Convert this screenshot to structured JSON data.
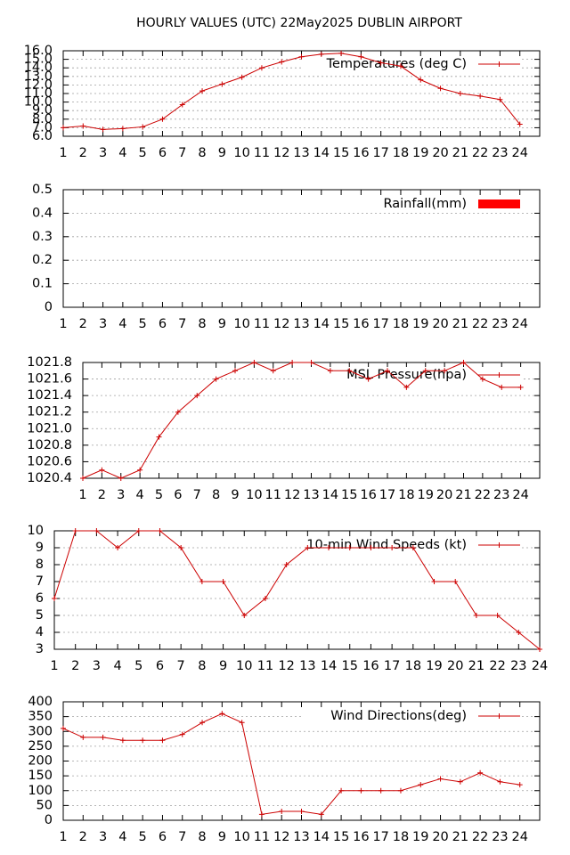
{
  "page": {
    "title": "HOURLY VALUES (UTC) 22May2025  DUBLIN AIRPORT"
  },
  "colors": {
    "series": "#cc0000",
    "rain": "#ff0000"
  },
  "chart_data": [
    {
      "type": "line",
      "legend": "Temperatures (deg C)",
      "legend_placement": "top-right",
      "x": [
        1,
        2,
        3,
        4,
        5,
        6,
        7,
        8,
        9,
        10,
        11,
        12,
        13,
        14,
        15,
        16,
        17,
        18,
        19,
        20,
        21,
        22,
        23,
        24
      ],
      "values": [
        7.0,
        7.2,
        6.8,
        6.9,
        7.1,
        8.0,
        9.7,
        11.3,
        12.1,
        12.9,
        14.0,
        14.7,
        15.3,
        15.6,
        15.7,
        15.3,
        14.6,
        14.2,
        12.6,
        11.6,
        11.0,
        10.7,
        10.3,
        7.4
      ],
      "xlim": [
        1,
        25
      ],
      "ylim": [
        6,
        16
      ],
      "yticks": [
        "6.0",
        "7.0",
        "8.0",
        "9.0",
        "10.0",
        "11.0",
        "12.0",
        "13.0",
        "14.0",
        "15.0",
        "16.0"
      ],
      "xticks": [
        "1",
        "2",
        "3",
        "4",
        "5",
        "6",
        "7",
        "8",
        "9",
        "10",
        "11",
        "12",
        "13",
        "14",
        "15",
        "16",
        "17",
        "18",
        "19",
        "20",
        "21",
        "22",
        "23",
        "24"
      ],
      "grid": true
    },
    {
      "type": "bar",
      "legend": "Rainfall(mm)",
      "legend_placement": "top-right",
      "x": [
        1,
        2,
        3,
        4,
        5,
        6,
        7,
        8,
        9,
        10,
        11,
        12,
        13,
        14,
        15,
        16,
        17,
        18,
        19,
        20,
        21,
        22,
        23,
        24
      ],
      "values": [
        0,
        0,
        0,
        0,
        0,
        0,
        0,
        0,
        0,
        0,
        0,
        0,
        0,
        0,
        0,
        0,
        0,
        0,
        0,
        0,
        0,
        0,
        0,
        0
      ],
      "xlim": [
        1,
        25
      ],
      "ylim": [
        0,
        0.5
      ],
      "yticks": [
        "0",
        "0.1",
        "0.2",
        "0.3",
        "0.4",
        "0.5"
      ],
      "xticks": [
        "1",
        "2",
        "3",
        "4",
        "5",
        "6",
        "7",
        "8",
        "9",
        "10",
        "11",
        "12",
        "13",
        "14",
        "15",
        "16",
        "17",
        "18",
        "19",
        "20",
        "21",
        "22",
        "23",
        "24"
      ],
      "grid": true
    },
    {
      "type": "line",
      "legend": "MSL Pressure(hpa)",
      "legend_placement": "top-right",
      "x": [
        1,
        2,
        3,
        4,
        5,
        6,
        7,
        8,
        9,
        10,
        11,
        12,
        13,
        14,
        15,
        16,
        17,
        18,
        19,
        20,
        21,
        22,
        23,
        24
      ],
      "values": [
        1020.4,
        1020.5,
        1020.4,
        1020.5,
        1020.9,
        1021.2,
        1021.4,
        1021.6,
        1021.7,
        1021.8,
        1021.7,
        1021.8,
        1021.8,
        1021.7,
        1021.7,
        1021.6,
        1021.7,
        1021.5,
        1021.7,
        1021.7,
        1021.8,
        1021.6,
        1021.5,
        1021.5
      ],
      "xlim": [
        1,
        25
      ],
      "ylim": [
        1020.4,
        1021.8
      ],
      "yticks": [
        "1020.4",
        "1020.6",
        "1020.8",
        "1021.0",
        "1021.2",
        "1021.4",
        "1021.6",
        "1021.8"
      ],
      "xticks": [
        "1",
        "2",
        "3",
        "4",
        "5",
        "6",
        "7",
        "8",
        "9",
        "10",
        "11",
        "12",
        "13",
        "14",
        "15",
        "16",
        "17",
        "18",
        "19",
        "20",
        "21",
        "22",
        "23",
        "24"
      ],
      "grid": true
    },
    {
      "type": "line",
      "legend": "10-min Wind Speeds (kt)",
      "legend_placement": "top-right",
      "x": [
        1,
        2,
        3,
        4,
        5,
        6,
        7,
        8,
        9,
        10,
        11,
        12,
        13,
        14,
        15,
        16,
        17,
        18,
        19,
        20,
        21,
        22,
        23,
        24
      ],
      "values": [
        6,
        10,
        10,
        9,
        10,
        10,
        9,
        7,
        7,
        5,
        6,
        8,
        9,
        9,
        9,
        9,
        9,
        9,
        7,
        7,
        5,
        5,
        4,
        3
      ],
      "xlim": [
        1,
        24
      ],
      "ylim": [
        3,
        10
      ],
      "yticks": [
        "3",
        "4",
        "5",
        "6",
        "7",
        "8",
        "9",
        "10"
      ],
      "xticks": [
        "1",
        "2",
        "3",
        "4",
        "5",
        "6",
        "7",
        "8",
        "9",
        "10",
        "11",
        "12",
        "13",
        "14",
        "15",
        "16",
        "17",
        "18",
        "19",
        "20",
        "21",
        "22",
        "23",
        "24"
      ],
      "grid": true
    },
    {
      "type": "line",
      "legend": "Wind Directions(deg)",
      "legend_placement": "top-right",
      "x": [
        1,
        2,
        3,
        4,
        5,
        6,
        7,
        8,
        9,
        10,
        11,
        12,
        13,
        14,
        15,
        16,
        17,
        18,
        19,
        20,
        21,
        22,
        23,
        24
      ],
      "values": [
        310,
        280,
        280,
        270,
        270,
        270,
        290,
        330,
        360,
        330,
        20,
        30,
        30,
        20,
        100,
        100,
        100,
        100,
        120,
        140,
        130,
        160,
        130,
        120
      ],
      "xlim": [
        1,
        25
      ],
      "ylim": [
        0,
        400
      ],
      "yticks": [
        "0",
        "50",
        "100",
        "150",
        "200",
        "250",
        "300",
        "350",
        "400"
      ],
      "xticks": [
        "1",
        "2",
        "3",
        "4",
        "5",
        "6",
        "7",
        "8",
        "9",
        "10",
        "11",
        "12",
        "13",
        "14",
        "15",
        "16",
        "17",
        "18",
        "19",
        "20",
        "21",
        "22",
        "23",
        "24"
      ],
      "grid": true
    }
  ]
}
